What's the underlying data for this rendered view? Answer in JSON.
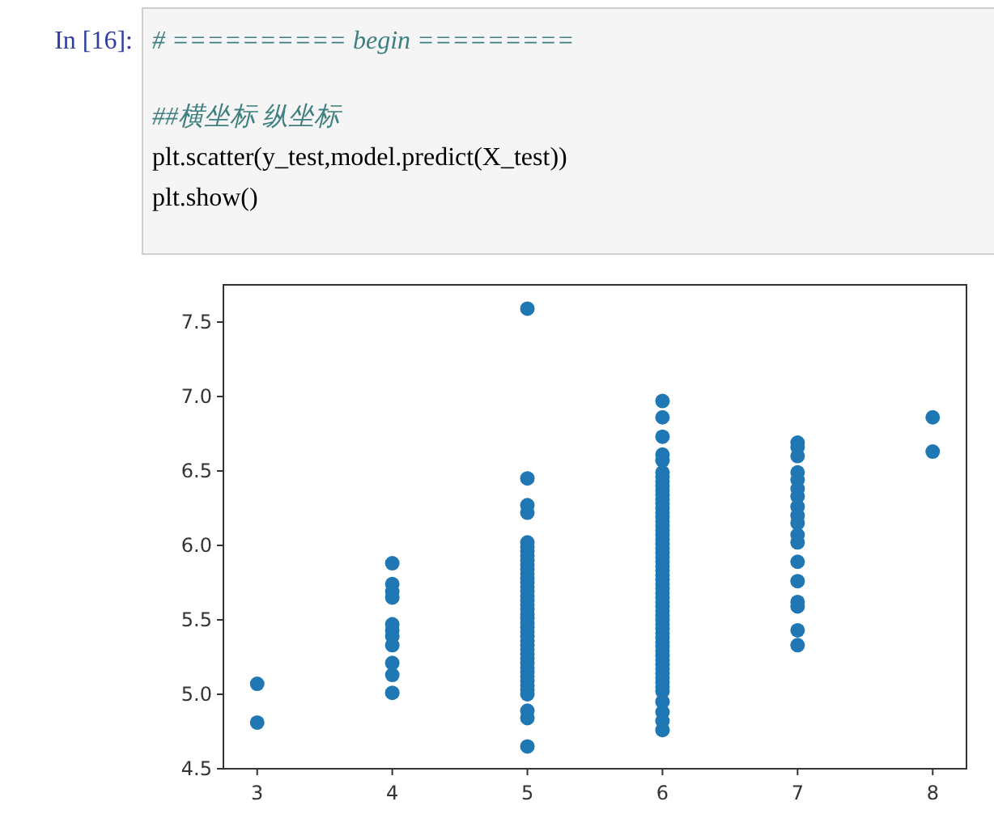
{
  "chart_data": {
    "type": "scatter",
    "annotations": [
      "In [16]:",
      "# ========== begin =========",
      "##横坐标  纵坐标",
      "plt.scatter(y_test,model.predict(X_test))",
      "plt.show()"
    ],
    "series": [
      {
        "color": "#1f77b4",
        "x": [
          3,
          3,
          4,
          4,
          4,
          4,
          4,
          4,
          4,
          4,
          4,
          4,
          4,
          5,
          5,
          5,
          5,
          5,
          5,
          5,
          5,
          5,
          5,
          5,
          5,
          5,
          5,
          5,
          5,
          5,
          5,
          5,
          5,
          5,
          5,
          5,
          5,
          5,
          5,
          5,
          5,
          5,
          5,
          5,
          5,
          5,
          5,
          5,
          5,
          5,
          5,
          5,
          5,
          5,
          5,
          6,
          6,
          6,
          6,
          6,
          6,
          6,
          6,
          6,
          6,
          6,
          6,
          6,
          6,
          6,
          6,
          6,
          6,
          6,
          6,
          6,
          6,
          6,
          6,
          6,
          6,
          6,
          6,
          6,
          6,
          6,
          6,
          6,
          6,
          6,
          6,
          6,
          6,
          6,
          6,
          6,
          6,
          6,
          6,
          6,
          6,
          6,
          6,
          6,
          6,
          6,
          6,
          6,
          6,
          6,
          6,
          6,
          6,
          6,
          7,
          7,
          7,
          7,
          7,
          7,
          7,
          7,
          7,
          7,
          7,
          7,
          7,
          7,
          7,
          7,
          7,
          7,
          8,
          8
        ],
        "values": [
          5.07,
          4.81,
          5.88,
          5.74,
          5.69,
          5.65,
          5.47,
          5.43,
          5.39,
          5.33,
          5.21,
          5.13,
          5.01,
          7.59,
          6.45,
          6.27,
          6.22,
          6.02,
          5.99,
          5.96,
          5.93,
          5.9,
          5.87,
          5.84,
          5.81,
          5.78,
          5.75,
          5.72,
          5.69,
          5.66,
          5.63,
          5.6,
          5.57,
          5.54,
          5.51,
          5.48,
          5.45,
          5.42,
          5.39,
          5.36,
          5.33,
          5.3,
          5.27,
          5.24,
          5.21,
          5.18,
          5.15,
          5.12,
          5.09,
          5.06,
          5.03,
          5.0,
          4.89,
          4.84,
          4.65,
          6.97,
          6.86,
          6.73,
          6.61,
          6.57,
          6.49,
          6.46,
          6.43,
          6.4,
          6.37,
          6.34,
          6.31,
          6.28,
          6.25,
          6.22,
          6.19,
          6.16,
          6.13,
          6.1,
          6.07,
          6.04,
          6.01,
          5.98,
          5.95,
          5.92,
          5.89,
          5.86,
          5.83,
          5.8,
          5.77,
          5.74,
          5.71,
          5.68,
          5.65,
          5.62,
          5.59,
          5.56,
          5.53,
          5.5,
          5.47,
          5.44,
          5.41,
          5.38,
          5.35,
          5.32,
          5.29,
          5.26,
          5.23,
          5.2,
          5.17,
          5.14,
          5.11,
          5.08,
          5.05,
          5.02,
          4.95,
          4.88,
          4.82,
          4.76,
          6.69,
          6.66,
          6.6,
          6.49,
          6.44,
          6.38,
          6.33,
          6.26,
          6.2,
          6.15,
          6.07,
          6.02,
          5.89,
          5.76,
          5.62,
          5.59,
          5.43,
          5.33,
          6.86,
          6.63
        ]
      }
    ],
    "xlim": [
      2.75,
      8.25
    ],
    "ylim": [
      4.5,
      7.75
    ],
    "xticks": [
      3,
      4,
      5,
      6,
      7,
      8
    ],
    "yticks": [
      {
        "value": 4.5,
        "label": "4.5"
      },
      {
        "value": 5,
        "label": "5.0"
      },
      {
        "value": 5.5,
        "label": "5.5"
      },
      {
        "value": 6,
        "label": "6.0"
      },
      {
        "value": 6.5,
        "label": "6.5"
      },
      {
        "value": 7,
        "label": "7.0"
      },
      {
        "value": 7.5,
        "label": "7.5"
      }
    ],
    "marker": "circle",
    "grid": false
  }
}
